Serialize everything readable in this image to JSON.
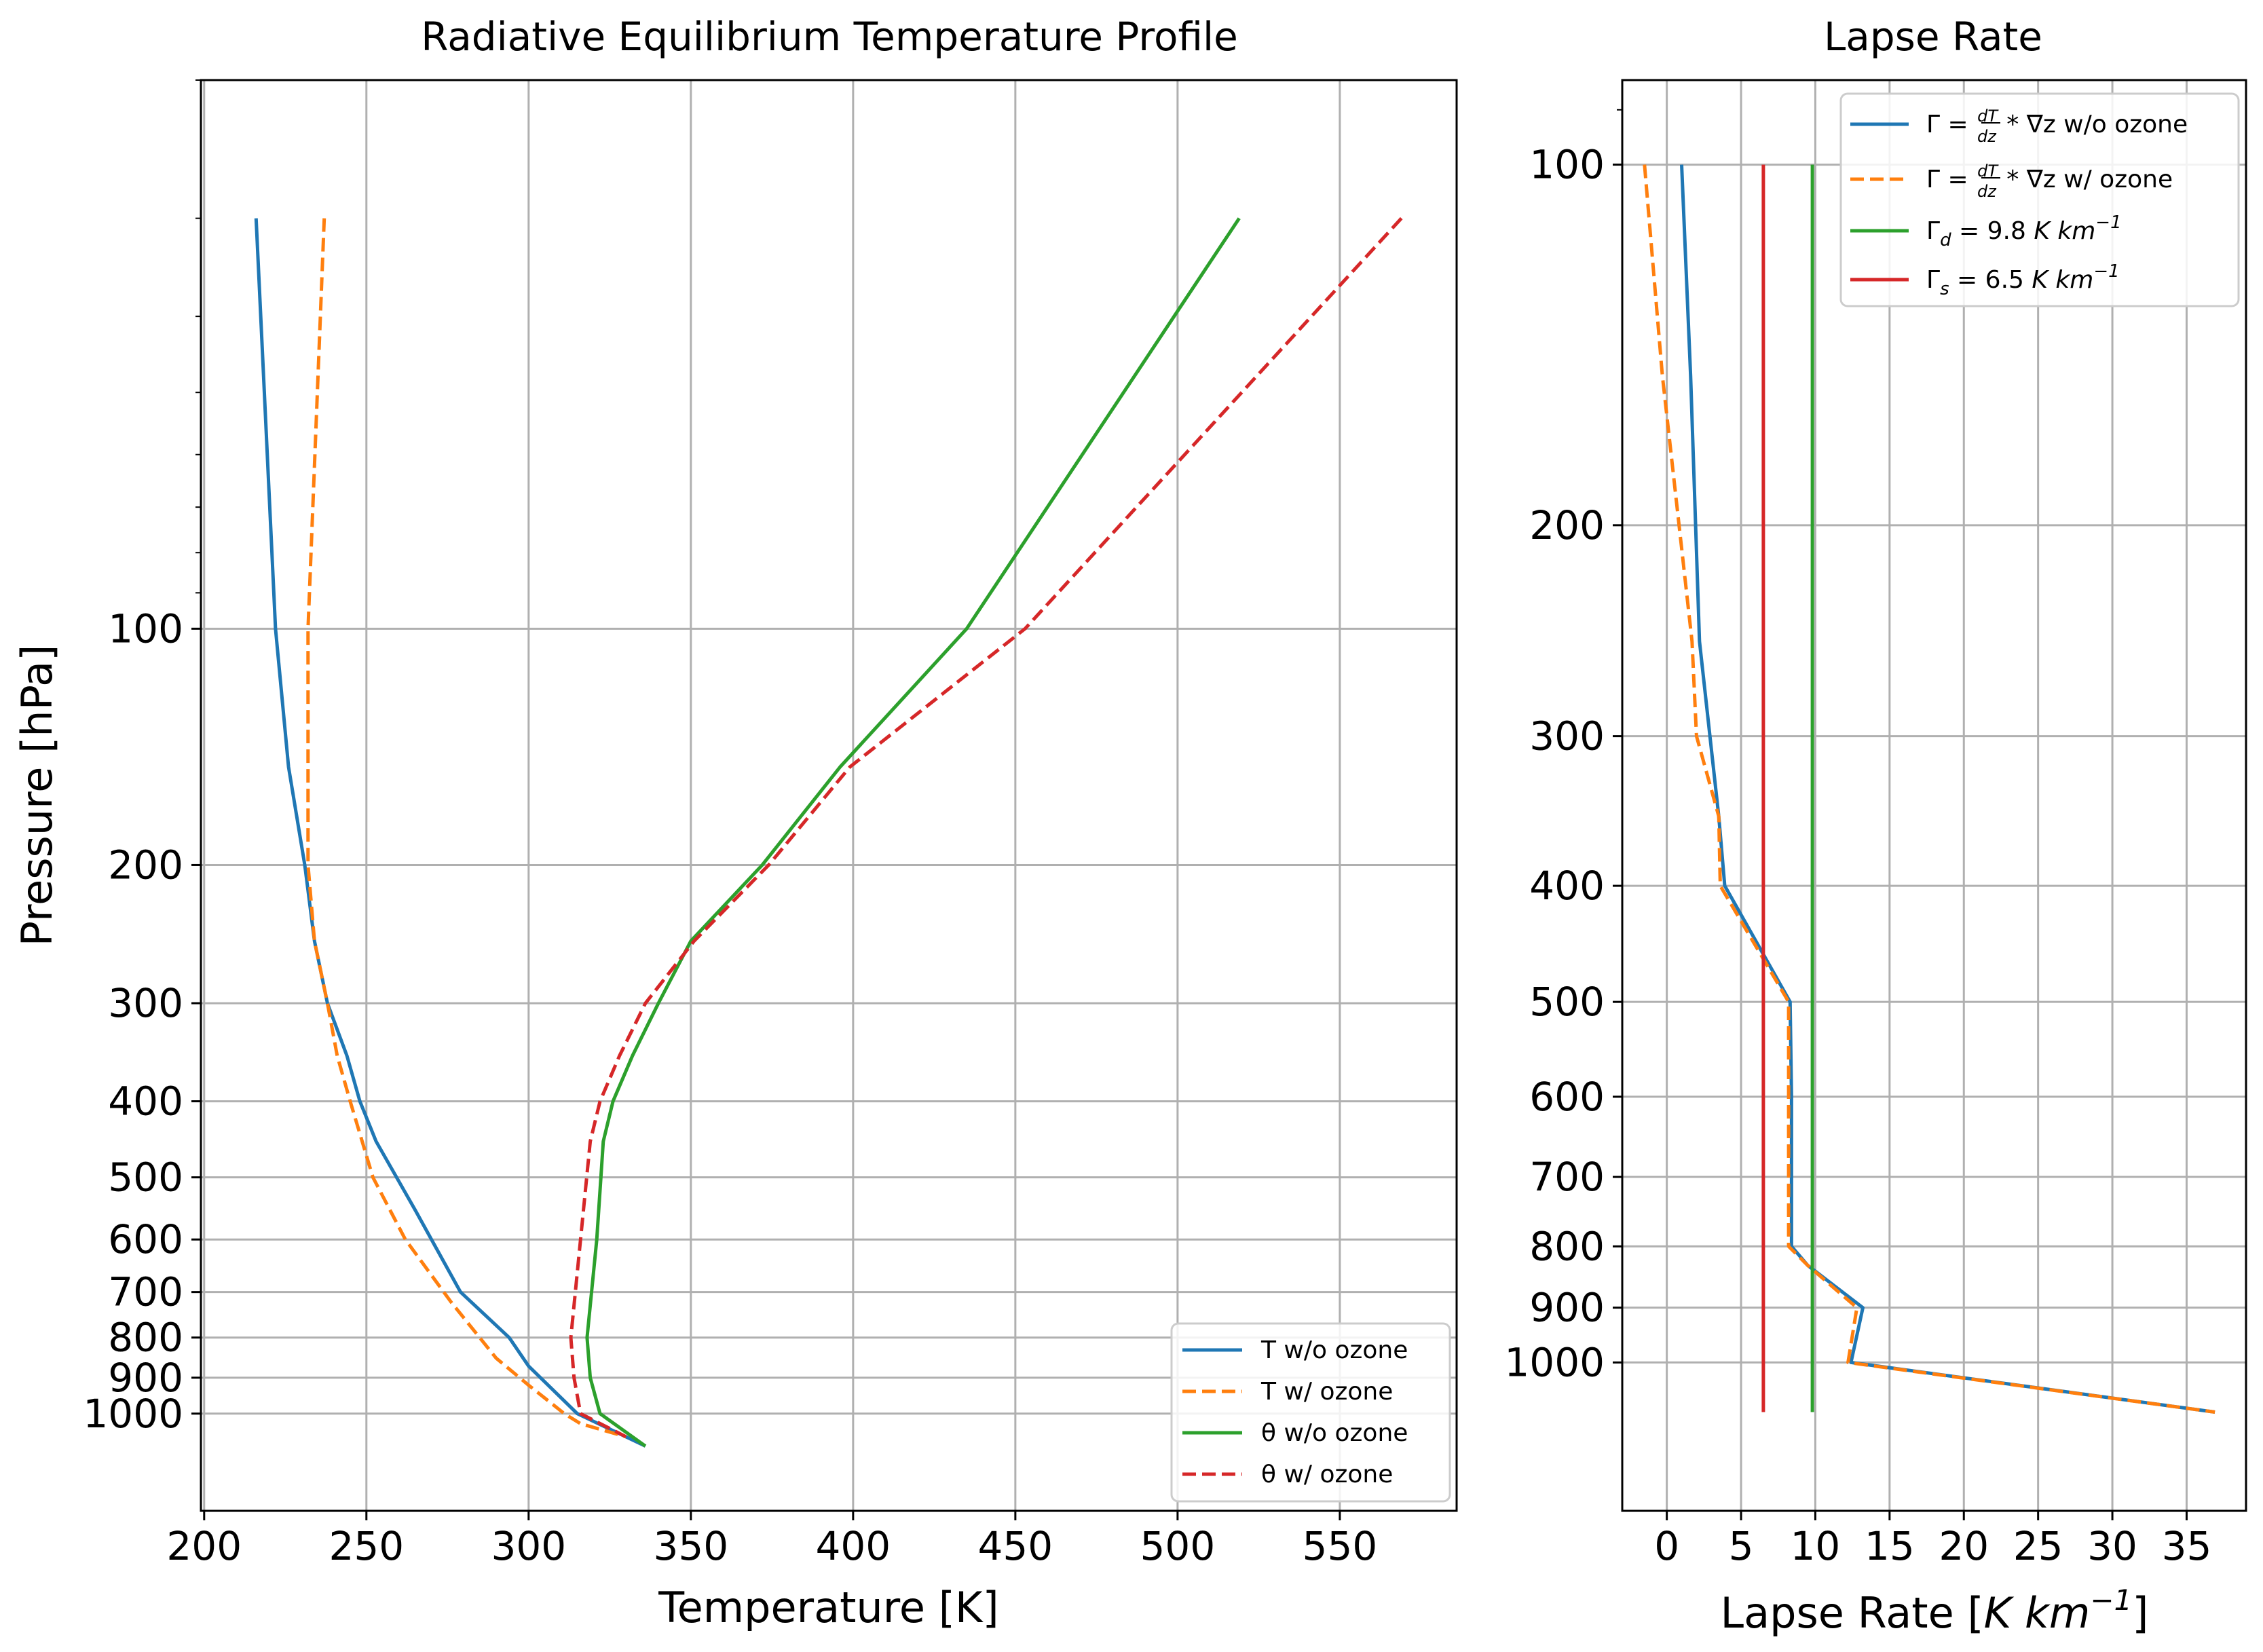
{
  "charts": [
    {
      "id": "left",
      "type": "line",
      "title": "Radiative Equilibrium Temperature Profile",
      "xlabel": "Temperature [K]",
      "ylabel": "Pressure [hPa]",
      "xscale": "linear",
      "yscale": "log",
      "yinverted": true,
      "xlim": [
        199,
        586
      ],
      "ylim": [
        1330,
        20
      ],
      "xticks": [
        200,
        250,
        300,
        350,
        400,
        450,
        500,
        550
      ],
      "yticks": [
        100,
        200,
        300,
        400,
        500,
        600,
        700,
        800,
        900,
        1000
      ],
      "grid": true,
      "legend_position": "lower-right",
      "series": [
        {
          "name": "T w/o ozone",
          "color": "#1f77b4",
          "dash": false,
          "points": [
            [
              216,
              30
            ],
            [
              222,
              100
            ],
            [
              226,
              150
            ],
            [
              231,
              200
            ],
            [
              234,
              250
            ],
            [
              238,
              300
            ],
            [
              244,
              350
            ],
            [
              248,
              400
            ],
            [
              253,
              450
            ],
            [
              265,
              550
            ],
            [
              279,
              700
            ],
            [
              294,
              800
            ],
            [
              300,
              870
            ],
            [
              315,
              1000
            ],
            [
              336,
              1100
            ]
          ]
        },
        {
          "name": "T w/ ozone",
          "color": "#ff7f0e",
          "dash": true,
          "points": [
            [
              237,
              30
            ],
            [
              232,
              100
            ],
            [
              232,
              200
            ],
            [
              234,
              250
            ],
            [
              238,
              300
            ],
            [
              241,
              350
            ],
            [
              245,
              400
            ],
            [
              252,
              500
            ],
            [
              262,
              600
            ],
            [
              276,
              720
            ],
            [
              290,
              850
            ],
            [
              300,
              920
            ],
            [
              311,
              1000
            ],
            [
              316,
              1030
            ],
            [
              330,
              1070
            ]
          ]
        },
        {
          "name": "θ w/o ozone",
          "color": "#2ca02c",
          "dash": false,
          "points": [
            [
              519,
              30
            ],
            [
              435,
              100
            ],
            [
              396,
              150
            ],
            [
              372,
              200
            ],
            [
              350,
              250
            ],
            [
              340,
              300
            ],
            [
              332,
              350
            ],
            [
              326,
              400
            ],
            [
              323,
              450
            ],
            [
              321,
              600
            ],
            [
              318,
              800
            ],
            [
              319,
              900
            ],
            [
              322,
              1000
            ],
            [
              336,
              1100
            ]
          ]
        },
        {
          "name": "θ w/ ozone",
          "color": "#d62728",
          "dash": true,
          "points": [
            [
              569,
              30
            ],
            [
              453,
              100
            ],
            [
              399,
              150
            ],
            [
              374,
              200
            ],
            [
              351,
              250
            ],
            [
              336,
              300
            ],
            [
              328,
              350
            ],
            [
              322,
              400
            ],
            [
              319,
              450
            ],
            [
              316,
              600
            ],
            [
              313,
              800
            ],
            [
              314,
              900
            ],
            [
              316,
              1000
            ],
            [
              330,
              1070
            ]
          ]
        }
      ]
    },
    {
      "id": "right",
      "type": "line",
      "title": "Lapse Rate",
      "xlabel_parts": [
        "Lapse Rate [",
        "K km",
        "−1",
        "]"
      ],
      "xscale": "linear",
      "yscale": "log",
      "yinverted": true,
      "xlim": [
        -3,
        39
      ],
      "ylim": [
        1330,
        85
      ],
      "xticks": [
        0,
        5,
        10,
        15,
        20,
        25,
        30,
        35
      ],
      "yticks": [
        100,
        200,
        300,
        400,
        500,
        600,
        700,
        800,
        900,
        1000
      ],
      "grid": true,
      "legend_position": "upper-right",
      "series": [
        {
          "name": "Γ = dT/dz * ∇z w/o ozone",
          "color": "#1f77b4",
          "dash": false,
          "legend_label": {
            "prefix": "Γ = ",
            "num": "dT",
            "den": "dz",
            "suffix": " * ∇z w/o ozone"
          },
          "points": [
            [
              1.0,
              100
            ],
            [
              1.6,
              150
            ],
            [
              2.2,
              250
            ],
            [
              3.5,
              350
            ],
            [
              3.9,
              400
            ],
            [
              8.3,
              500
            ],
            [
              8.4,
              600
            ],
            [
              8.4,
              800
            ],
            [
              9.5,
              830
            ],
            [
              13.2,
              900
            ],
            [
              12.4,
              1000
            ],
            [
              36.9,
              1100
            ]
          ]
        },
        {
          "name": "Γ = dT/dz * ∇z w/ ozone",
          "color": "#ff7f0e",
          "dash": true,
          "legend_label": {
            "prefix": "Γ = ",
            "num": "dT",
            "den": "dz",
            "suffix": " * ∇z w/ ozone"
          },
          "points": [
            [
              -1.5,
              100
            ],
            [
              -0.3,
              150
            ],
            [
              1.7,
              250
            ],
            [
              2.0,
              300
            ],
            [
              3.5,
              350
            ],
            [
              3.6,
              400
            ],
            [
              8.2,
              500
            ],
            [
              8.2,
              600
            ],
            [
              8.2,
              800
            ],
            [
              9.5,
              830
            ],
            [
              12.8,
              900
            ],
            [
              12.2,
              1000
            ],
            [
              36.9,
              1100
            ]
          ]
        },
        {
          "name": "Γd = 9.8 K km−1",
          "color": "#2ca02c",
          "dash": false,
          "legend_label": {
            "sym": "Γ",
            "sub": "d",
            "text": " = 9.8 ",
            "unit": "K km",
            "sup": "−1"
          },
          "points": [
            [
              9.8,
              100
            ],
            [
              9.8,
              1100
            ]
          ]
        },
        {
          "name": "Γs = 6.5 K km−1",
          "color": "#d62728",
          "dash": false,
          "legend_label": {
            "sym": "Γ",
            "sub": "s",
            "text": " = 6.5 ",
            "unit": "K km",
            "sup": "−1"
          },
          "points": [
            [
              6.5,
              100
            ],
            [
              6.5,
              1100
            ]
          ]
        }
      ]
    }
  ]
}
